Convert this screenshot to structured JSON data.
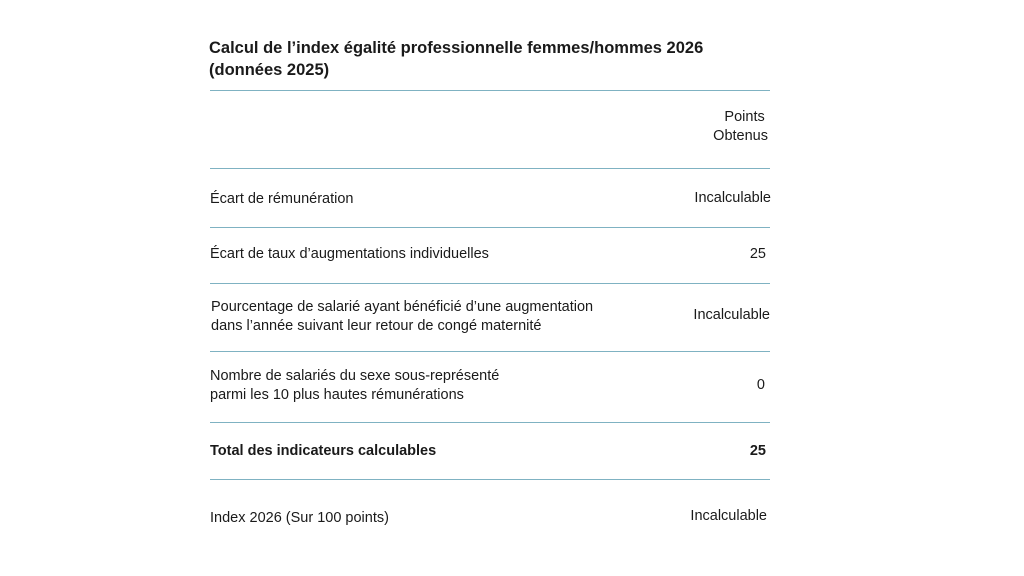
{
  "title_line1": "Calcul de l’index égalité professionnelle femmes/hommes 2026",
  "title_line2": "(données 2025)",
  "header": {
    "points_line1": "Points",
    "points_line2": "Obtenus"
  },
  "rows": [
    {
      "label_line1": "Écart de rémunération",
      "value": "Incalculable"
    },
    {
      "label_line1": "Écart de taux d’augmentations individuelles",
      "value": "25"
    },
    {
      "label_line1": "Pourcentage de salarié ayant bénéficié d’une augmentation",
      "label_line2": "dans l’année suivant leur retour de congé maternité",
      "value": "Incalculable"
    },
    {
      "label_line1": "Nombre de salariés du sexe sous-représenté",
      "label_line2": "parmi les 10 plus hautes rémunérations",
      "value": "0"
    }
  ],
  "total": {
    "label": "Total des indicateurs calculables",
    "value": "25"
  },
  "index": {
    "label": "Index 2026 (Sur 100 points)",
    "value": "Incalculable"
  }
}
